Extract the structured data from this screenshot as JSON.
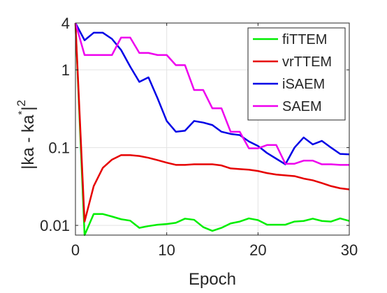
{
  "chart_data": {
    "type": "line",
    "xlabel": "Epoch",
    "ylabel": "|ka - ka*|²",
    "ylabel_parts": {
      "main": "|ka - ka",
      "star": "*",
      "bar": "|",
      "power": "2"
    },
    "xscale": "linear",
    "yscale": "log",
    "xlim": [
      0,
      30
    ],
    "ylim": [
      0.0075,
      4
    ],
    "xticks": [
      0,
      10,
      20,
      30
    ],
    "xtick_labels": [
      "0",
      "10",
      "20",
      "30"
    ],
    "yticks": [
      0.01,
      0.1,
      1,
      4
    ],
    "ytick_labels": [
      "0.01",
      "0.1",
      "1",
      "4"
    ],
    "grid": true,
    "legend_position": "top-right",
    "x": [
      0,
      1,
      2,
      3,
      4,
      5,
      6,
      7,
      8,
      9,
      10,
      11,
      12,
      13,
      14,
      15,
      16,
      17,
      18,
      19,
      20,
      21,
      22,
      23,
      24,
      25,
      26,
      27,
      28,
      29,
      30
    ],
    "series": [
      {
        "name": "fiTTEM",
        "color": "#00ee00",
        "values": [
          4,
          0.0073,
          0.014,
          0.014,
          0.013,
          0.012,
          0.0115,
          0.0093,
          0.0098,
          0.0102,
          0.0104,
          0.0108,
          0.0122,
          0.0118,
          0.0095,
          0.0085,
          0.0093,
          0.0106,
          0.0112,
          0.0123,
          0.0117,
          0.0102,
          0.0102,
          0.0102,
          0.0112,
          0.0114,
          0.0122,
          0.0114,
          0.0112,
          0.0123,
          0.0114
        ]
      },
      {
        "name": "vrTTEM",
        "color": "#e60000",
        "values": [
          4,
          0.0112,
          0.032,
          0.055,
          0.07,
          0.08,
          0.08,
          0.078,
          0.074,
          0.069,
          0.064,
          0.06,
          0.06,
          0.061,
          0.061,
          0.061,
          0.059,
          0.054,
          0.053,
          0.052,
          0.05,
          0.047,
          0.045,
          0.044,
          0.043,
          0.04,
          0.038,
          0.035,
          0.032,
          0.03,
          0.029
        ]
      },
      {
        "name": "iSAEM",
        "color": "#0000e6",
        "values": [
          4,
          2.4,
          3.0,
          3.0,
          2.5,
          1.8,
          1.1,
          0.7,
          0.8,
          0.43,
          0.22,
          0.16,
          0.165,
          0.22,
          0.21,
          0.195,
          0.16,
          0.15,
          0.145,
          0.12,
          0.105,
          0.085,
          0.072,
          0.061,
          0.1,
          0.135,
          0.11,
          0.122,
          0.1,
          0.083,
          0.082
        ]
      },
      {
        "name": "SAEM",
        "color": "#ee00ee",
        "values": [
          4,
          1.55,
          1.55,
          1.55,
          1.55,
          2.6,
          2.6,
          1.65,
          1.65,
          1.55,
          1.55,
          1.15,
          1.15,
          0.55,
          0.55,
          0.32,
          0.32,
          0.16,
          0.16,
          0.098,
          0.098,
          0.108,
          0.108,
          0.062,
          0.062,
          0.068,
          0.068,
          0.061,
          0.061,
          0.06,
          0.06
        ]
      }
    ]
  }
}
